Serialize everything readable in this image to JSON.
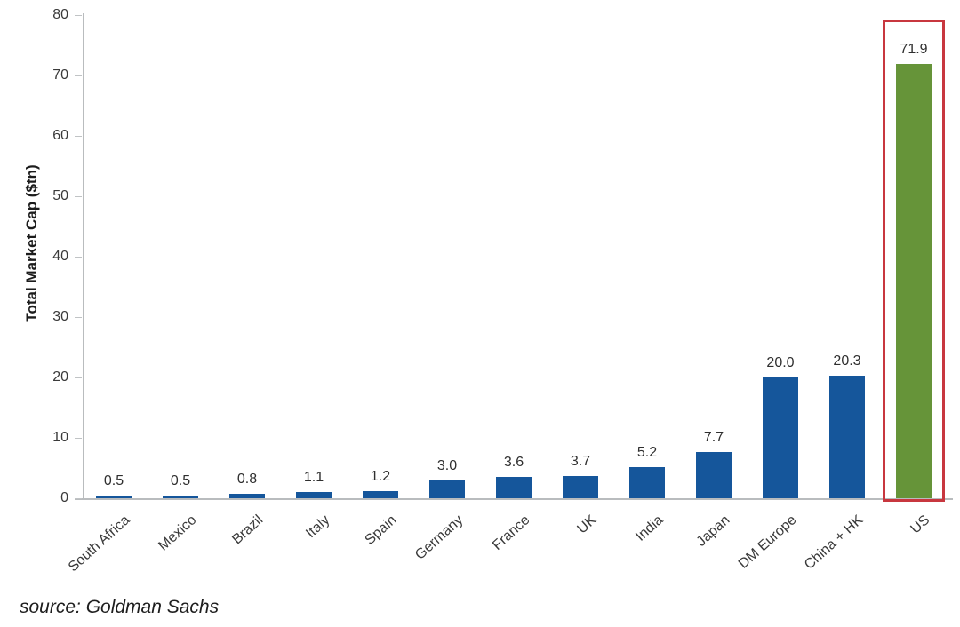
{
  "chart_data": {
    "type": "bar",
    "title": "",
    "xlabel": "",
    "ylabel": "Total Market Cap ($tn)",
    "categories": [
      "South Africa",
      "Mexico",
      "Brazil",
      "Italy",
      "Spain",
      "Germany",
      "France",
      "UK",
      "India",
      "Japan",
      "DM Europe",
      "China + HK",
      "US"
    ],
    "values": [
      0.5,
      0.5,
      0.8,
      1.1,
      1.2,
      3.0,
      3.6,
      3.7,
      5.2,
      7.7,
      20.0,
      20.3,
      71.9
    ],
    "value_labels": [
      "0.5",
      "0.5",
      "0.8",
      "1.1",
      "1.2",
      "3.0",
      "3.6",
      "3.7",
      "5.2",
      "7.7",
      "20.0",
      "20.3",
      "71.9"
    ],
    "ylim": [
      0,
      80
    ],
    "ytick_step": 10,
    "grid": false,
    "legend": false,
    "bar_color": "#15569b",
    "axis_color": "#b9bcbe",
    "text_color": "#3a3a3a",
    "highlight": {
      "category": "US",
      "bar_color": "#669439",
      "box_color": "#c8373f"
    }
  },
  "source": {
    "text": "source: Goldman Sachs"
  }
}
